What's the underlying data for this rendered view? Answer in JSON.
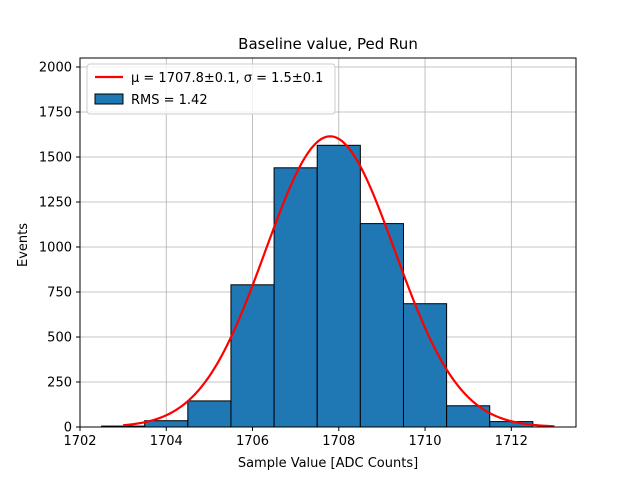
{
  "chart_data": {
    "type": "bar",
    "title": "Baseline value, Ped Run",
    "xlabel": "Sample Value [ADC Counts]",
    "ylabel": "Events",
    "xlim": [
      1702,
      1713.5
    ],
    "ylim": [
      0,
      2050
    ],
    "grid": true,
    "legend_position": "top-left",
    "x_ticks": [
      1702,
      1704,
      1706,
      1708,
      1710,
      1712
    ],
    "y_ticks": [
      0,
      250,
      500,
      750,
      1000,
      1250,
      1500,
      1750,
      2000
    ],
    "histogram": {
      "name": "RMS = 1.42",
      "color": "#1f77b4",
      "edgecolor": "#000000",
      "bin_edges": [
        1702.5,
        1703.5,
        1704.5,
        1705.5,
        1706.5,
        1707.5,
        1708.5,
        1709.5,
        1710.5,
        1711.5,
        1712.5
      ],
      "counts": [
        5,
        35,
        145,
        790,
        1440,
        1565,
        1130,
        685,
        118,
        30
      ]
    },
    "fit_curve": {
      "name": "μ = 1707.8±0.1, σ = 1.5±0.1",
      "color": "#ff0000",
      "type": "gaussian",
      "mu": 1707.8,
      "sigma": 1.5,
      "amplitude": 1615,
      "x_range": [
        1703,
        1713
      ]
    }
  }
}
